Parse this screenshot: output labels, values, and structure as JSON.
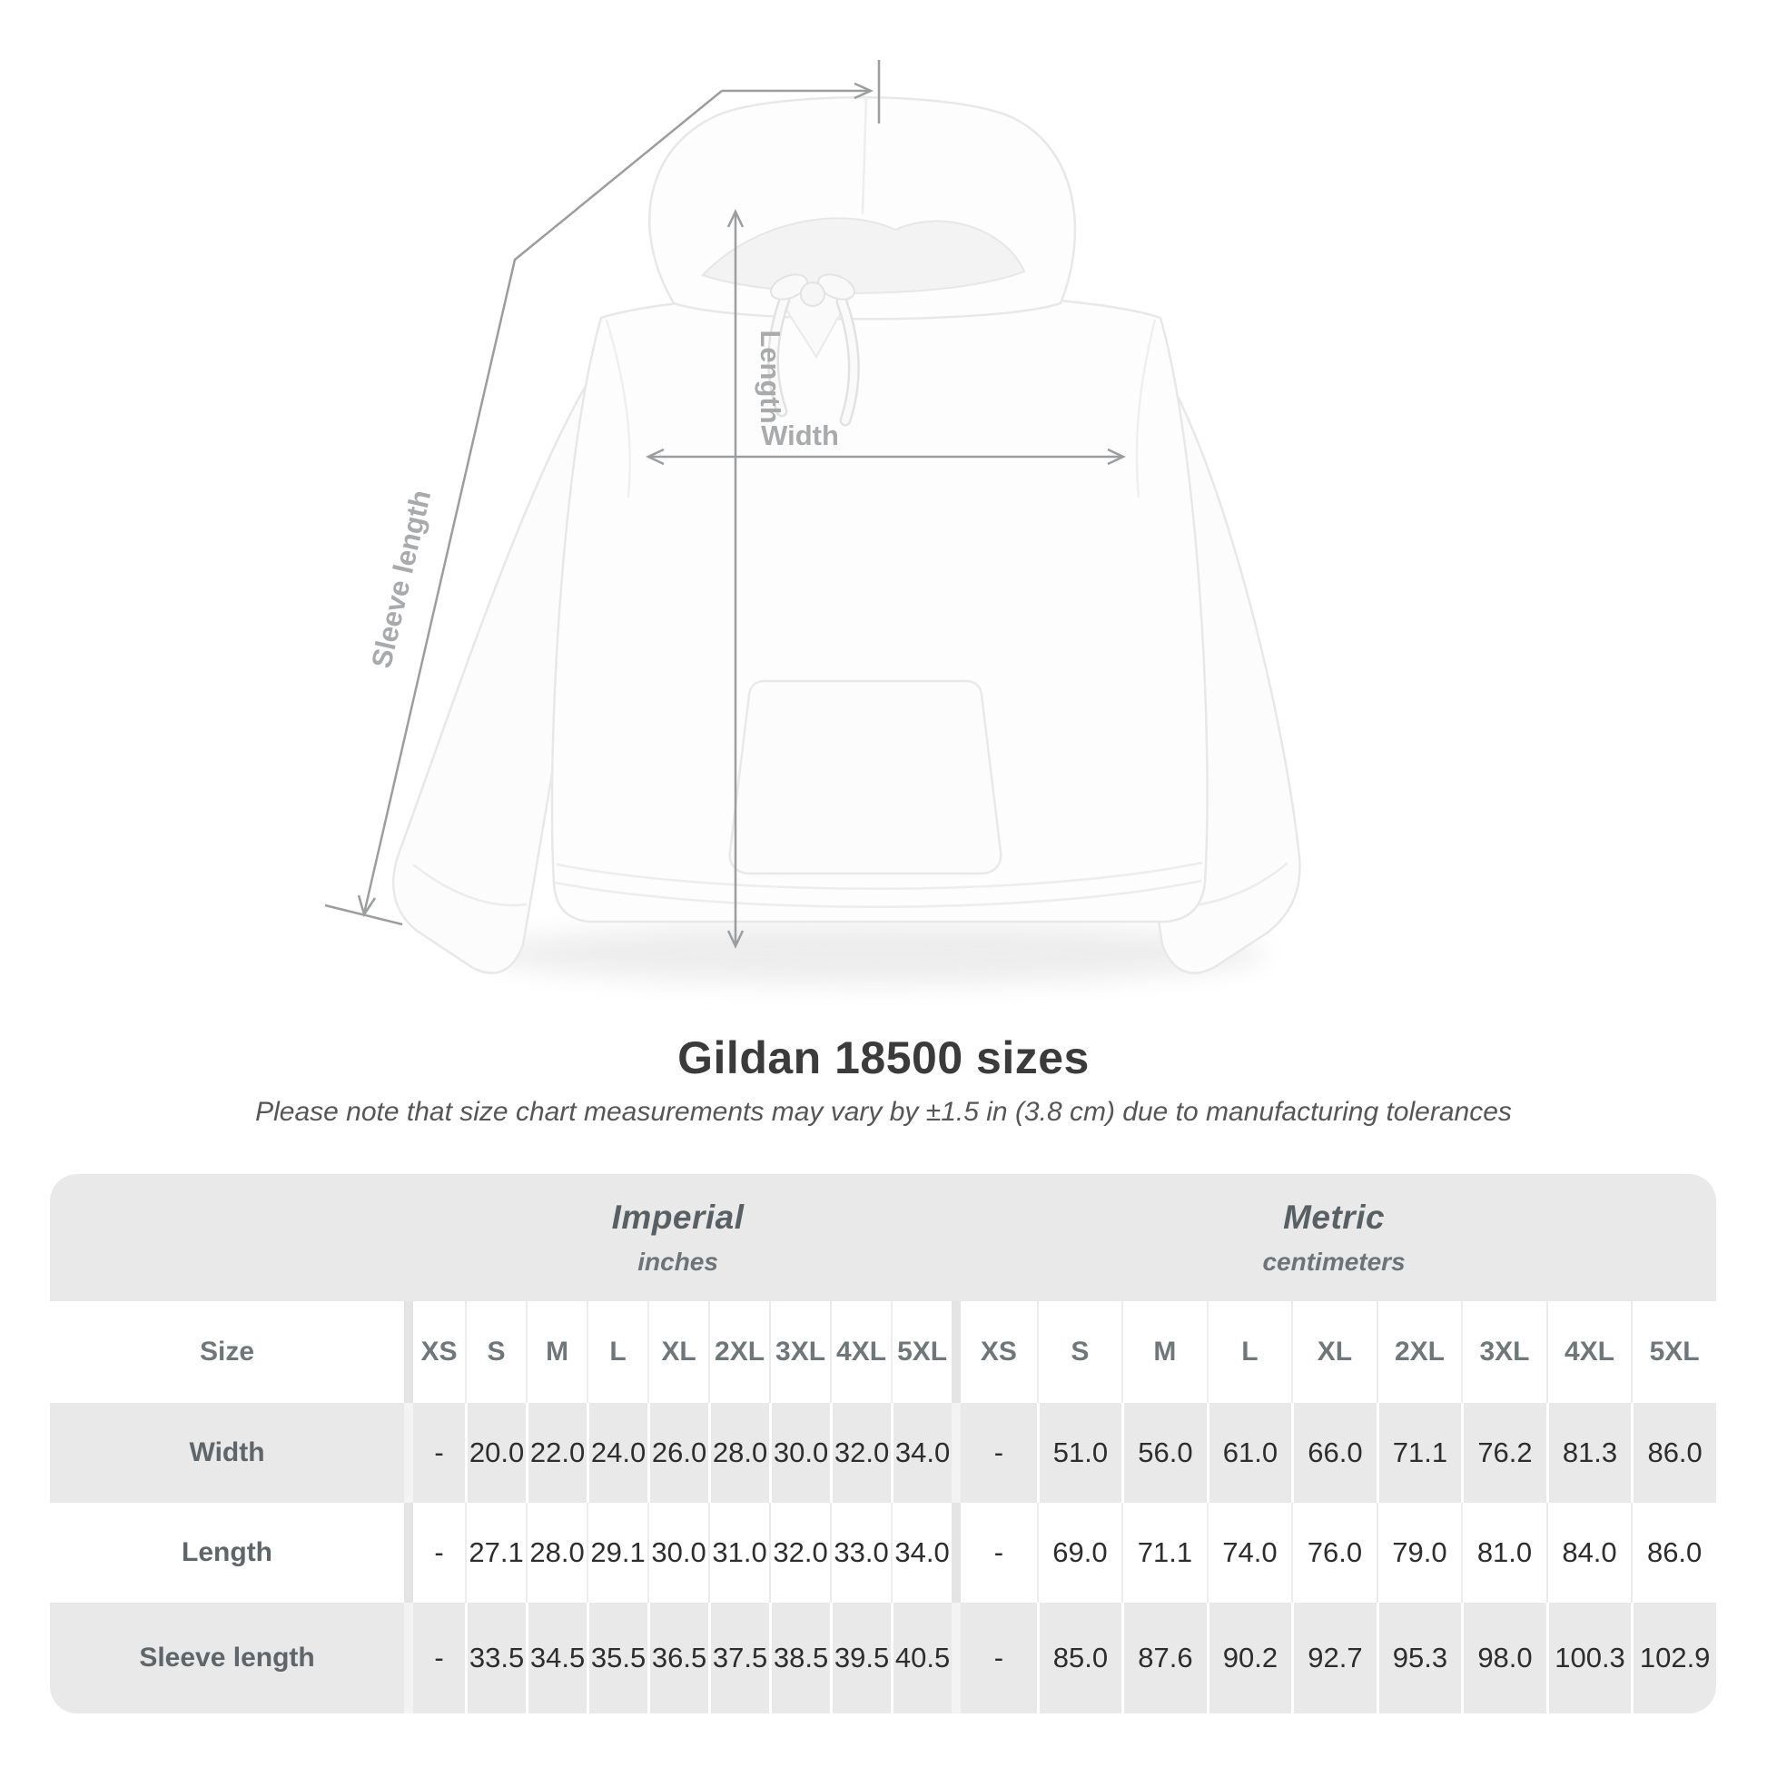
{
  "figure": {
    "type": "product-measurement-diagram",
    "product": "white pullover hooded sweatshirt",
    "labels": {
      "length": "Length",
      "width": "Width",
      "sleeve_length": "Sleeve length"
    }
  },
  "title": "Gildan 18500 sizes",
  "subtitle": "Please note that size chart measurements may vary by ±1.5 in (3.8 cm) due to manufacturing tolerances",
  "table": {
    "unit_headers": [
      {
        "label": "Imperial",
        "sublabel": "inches"
      },
      {
        "label": "Metric",
        "sublabel": "centimeters"
      }
    ],
    "size_column_header": "Size",
    "sizes": [
      "XS",
      "S",
      "M",
      "L",
      "XL",
      "2XL",
      "3XL",
      "4XL",
      "5XL"
    ],
    "rows": [
      {
        "label": "Width",
        "imperial": [
          "-",
          "20.0",
          "22.0",
          "24.0",
          "26.0",
          "28.0",
          "30.0",
          "32.0",
          "34.0"
        ],
        "metric": [
          "-",
          "51.0",
          "56.0",
          "61.0",
          "66.0",
          "71.1",
          "76.2",
          "81.3",
          "86.0"
        ]
      },
      {
        "label": "Length",
        "imperial": [
          "-",
          "27.1",
          "28.0",
          "29.1",
          "30.0",
          "31.0",
          "32.0",
          "33.0",
          "34.0"
        ],
        "metric": [
          "-",
          "69.0",
          "71.1",
          "74.0",
          "76.0",
          "79.0",
          "81.0",
          "84.0",
          "86.0"
        ]
      },
      {
        "label": "Sleeve length",
        "imperial": [
          "-",
          "33.5",
          "34.5",
          "35.5",
          "36.5",
          "37.5",
          "38.5",
          "39.5",
          "40.5"
        ],
        "metric": [
          "-",
          "85.0",
          "87.6",
          "90.2",
          "92.7",
          "95.3",
          "98.0",
          "100.3",
          "102.9"
        ]
      }
    ]
  },
  "chart_data": {
    "type": "table",
    "title": "Gildan 18500 sizes",
    "note": "Please note that size chart measurements may vary by ±1.5 in (3.8 cm) due to manufacturing tolerances",
    "column_labels": [
      "XS",
      "S",
      "M",
      "L",
      "XL",
      "2XL",
      "3XL",
      "4XL",
      "5XL"
    ],
    "sections": [
      {
        "name": "Imperial",
        "unit": "inches",
        "rows": [
          {
            "label": "Width",
            "values": [
              "-",
              20.0,
              22.0,
              24.0,
              26.0,
              28.0,
              30.0,
              32.0,
              34.0
            ]
          },
          {
            "label": "Length",
            "values": [
              "-",
              27.1,
              28.0,
              29.1,
              30.0,
              31.0,
              32.0,
              33.0,
              34.0
            ]
          },
          {
            "label": "Sleeve length",
            "values": [
              "-",
              33.5,
              34.5,
              35.5,
              36.5,
              37.5,
              38.5,
              39.5,
              40.5
            ]
          }
        ]
      },
      {
        "name": "Metric",
        "unit": "centimeters",
        "rows": [
          {
            "label": "Width",
            "values": [
              "-",
              51.0,
              56.0,
              61.0,
              66.0,
              71.1,
              76.2,
              81.3,
              86.0
            ]
          },
          {
            "label": "Length",
            "values": [
              "-",
              69.0,
              71.1,
              74.0,
              76.0,
              79.0,
              81.0,
              84.0,
              86.0
            ]
          },
          {
            "label": "Sleeve length",
            "values": [
              "-",
              85.0,
              87.6,
              90.2,
              92.7,
              95.3,
              98.0,
              100.3,
              102.9
            ]
          }
        ]
      }
    ]
  },
  "colors": {
    "table_band": "#e9e9e9",
    "row_stripe": "#e9e9e9",
    "dimension_line": "#9b9d9f",
    "dimension_label": "#a8aaac",
    "title_text": "#3b3b3b",
    "unit_header_text": "#596063",
    "size_header_text": "#70777a",
    "value_text": "#2d2d2d"
  }
}
